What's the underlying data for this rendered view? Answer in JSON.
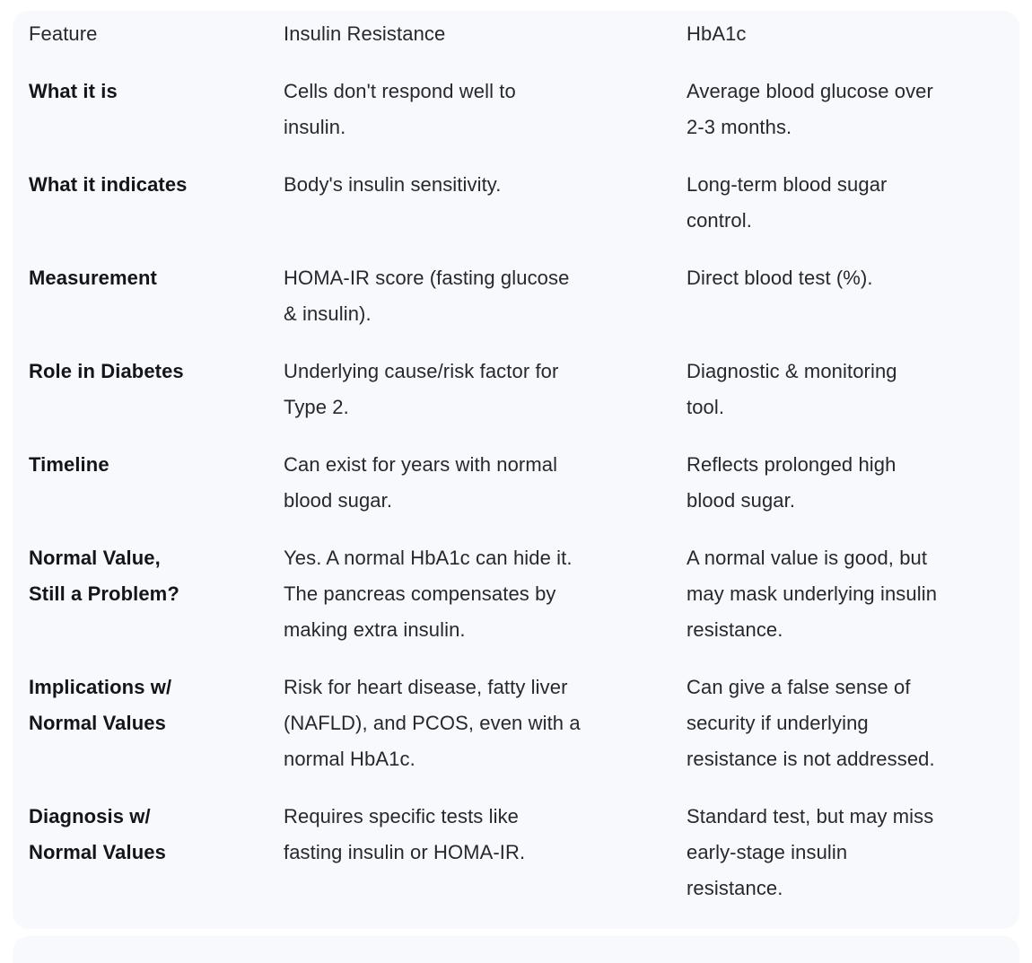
{
  "colors": {
    "card_background": "#f8f9fd",
    "page_background": "#ffffff",
    "body_text": "#27282c",
    "feature_text": "#141519"
  },
  "table": {
    "columns": {
      "feature": "Feature",
      "insulin_resistance": "Insulin Resistance",
      "hba1c": "HbA1c"
    },
    "rows": [
      {
        "feature": "What it is",
        "insulin_resistance": "Cells don't respond well to\ninsulin.",
        "hba1c": "Average blood glucose over\n2-3 months."
      },
      {
        "feature": "What it indicates",
        "insulin_resistance": "Body's insulin sensitivity.",
        "hba1c": "Long-term blood sugar\ncontrol."
      },
      {
        "feature": "Measurement",
        "insulin_resistance": "HOMA-IR score (fasting glucose\n& insulin).",
        "hba1c": "Direct blood test (%)."
      },
      {
        "feature": "Role in Diabetes",
        "insulin_resistance": "Underlying cause/risk factor for\nType 2.",
        "hba1c": "Diagnostic & monitoring\ntool."
      },
      {
        "feature": "Timeline",
        "insulin_resistance": "Can exist for years with normal\nblood sugar.",
        "hba1c": "Reflects prolonged high\nblood sugar."
      },
      {
        "feature": "Normal Value,\nStill a Problem?",
        "insulin_resistance": "Yes. A normal HbA1c can hide it.\nThe pancreas compensates by\nmaking extra insulin.",
        "hba1c": "A normal value is good, but\nmay mask underlying insulin\nresistance."
      },
      {
        "feature": "Implications w/\nNormal Values",
        "insulin_resistance": "Risk for heart disease, fatty liver\n(NAFLD), and PCOS, even with a\nnormal HbA1c.",
        "hba1c": "Can give a false sense of\nsecurity if underlying\nresistance is not addressed."
      },
      {
        "feature": "Diagnosis w/\nNormal Values",
        "insulin_resistance": "Requires specific tests like\nfasting insulin or HOMA-IR.",
        "hba1c": "Standard test, but may miss\nearly-stage insulin\nresistance."
      }
    ]
  }
}
